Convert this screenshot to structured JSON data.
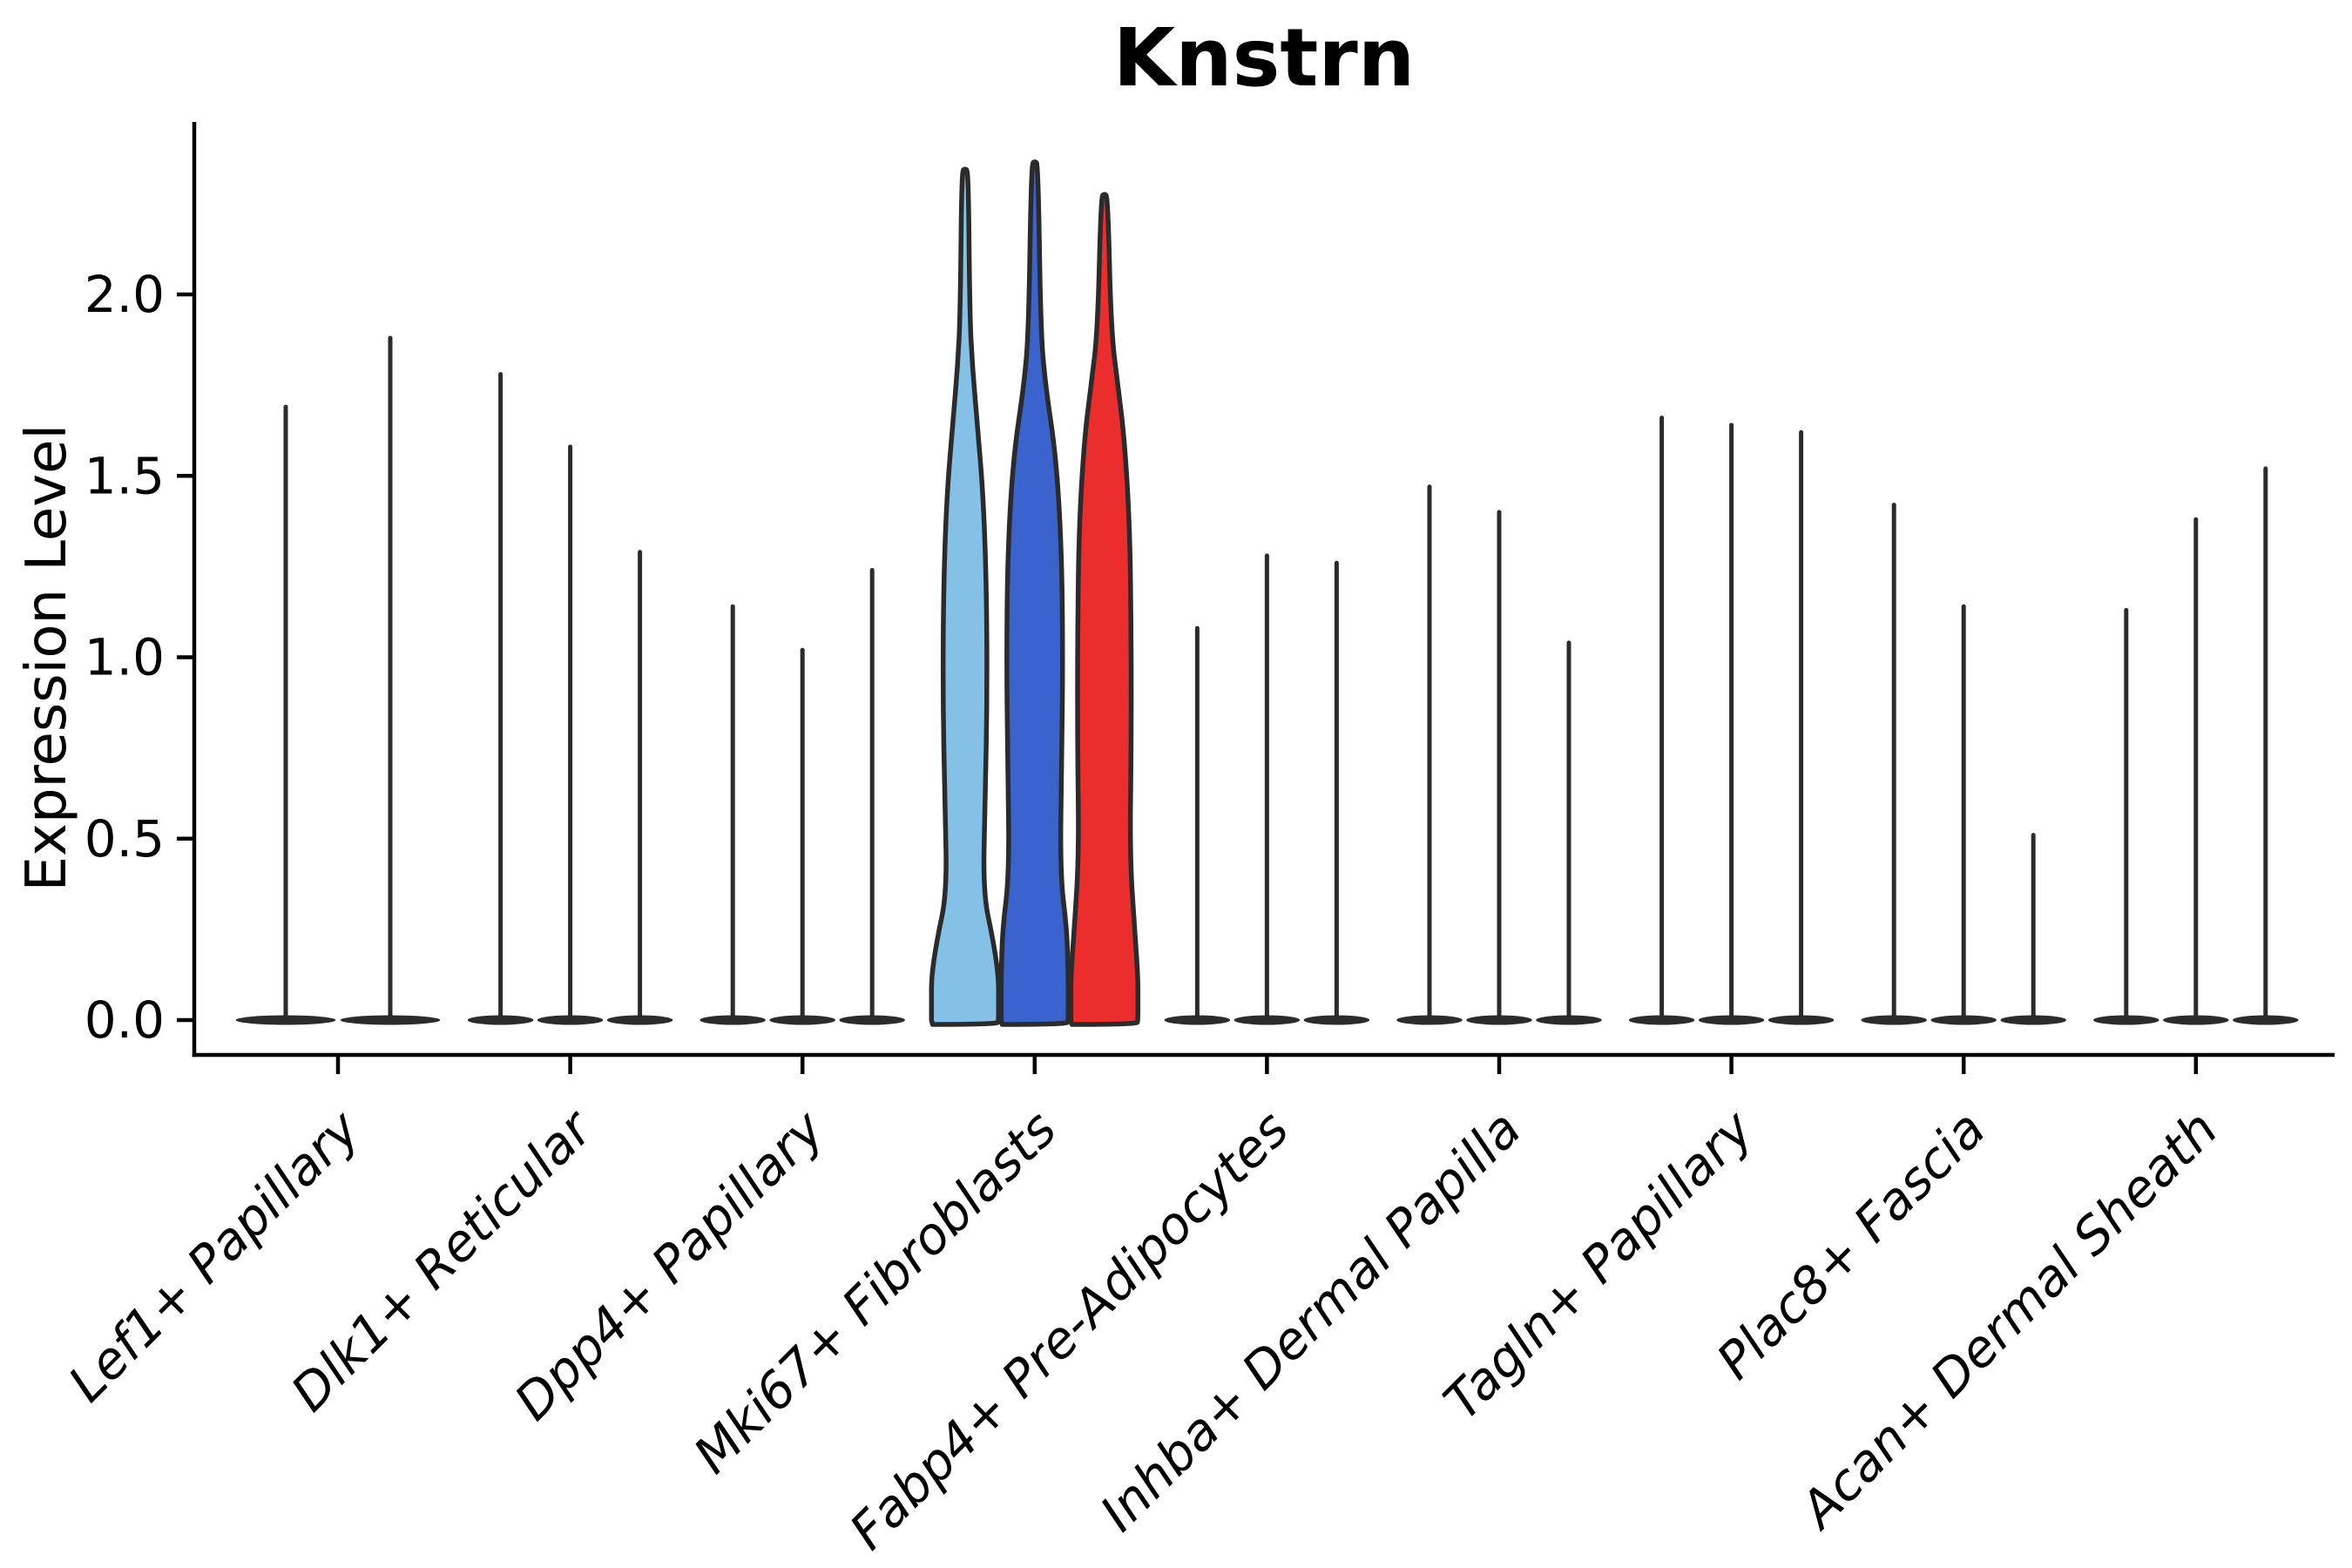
{
  "chart_data": {
    "type": "violin",
    "title": "Knstrn",
    "ylabel": "Expression Level",
    "xlabel": "",
    "yticks": [
      "0.0",
      "0.5",
      "1.0",
      "1.5",
      "2.0"
    ],
    "ytick_values": [
      0.0,
      0.5,
      1.0,
      1.5,
      2.0
    ],
    "ylim": [
      -0.11,
      2.43
    ],
    "grid": "off",
    "legend": "none",
    "categories": [
      "Lef1+ Papillary",
      "Dlk1+ Reticular",
      "Dpp4+ Papillary",
      "Mki67+ Fibroblasts",
      "Fabp4+ Pre-Adipocytes",
      "Inhba+ Dermal Papilla",
      "Tagln+ Papillary",
      "Plac8+ Fascia",
      "Acan+ Dermal Sheath"
    ],
    "groups": [
      {
        "label": "Lef1+ Papillary",
        "violins": [
          {
            "max_expression": 1.69
          },
          {
            "max_expression": 1.88
          }
        ]
      },
      {
        "label": "Dlk1+ Reticular",
        "violins": [
          {
            "max_expression": 1.78
          },
          {
            "max_expression": 1.58
          },
          {
            "max_expression": 1.29
          }
        ]
      },
      {
        "label": "Dpp4+ Papillary",
        "violins": [
          {
            "max_expression": 1.14
          },
          {
            "max_expression": 1.02
          },
          {
            "max_expression": 1.24
          }
        ]
      },
      {
        "label": "Mki67+ Fibroblasts",
        "violins": [
          {
            "max_expression": 2.34,
            "filled": true,
            "fill": "#85C1E6",
            "profile": [
              [
                0,
                1
              ],
              [
                0.05,
                0.95
              ],
              [
                0.12,
                0.7
              ],
              [
                0.22,
                0.42
              ],
              [
                0.35,
                0.27
              ],
              [
                0.6,
                0.3
              ],
              [
                0.9,
                0.33
              ],
              [
                1.2,
                0.32
              ],
              [
                1.45,
                0.27
              ],
              [
                1.65,
                0.18
              ],
              [
                1.8,
                0.11
              ],
              [
                1.95,
                0.07
              ],
              [
                2.34,
                0.05
              ]
            ]
          },
          {
            "max_expression": 2.36,
            "filled": true,
            "fill": "#3A63CE",
            "profile": [
              [
                0,
                1
              ],
              [
                0.05,
                0.95
              ],
              [
                0.12,
                0.72
              ],
              [
                0.25,
                0.48
              ],
              [
                0.4,
                0.38
              ],
              [
                0.7,
                0.4
              ],
              [
                1.0,
                0.42
              ],
              [
                1.3,
                0.4
              ],
              [
                1.55,
                0.32
              ],
              [
                1.75,
                0.16
              ],
              [
                1.9,
                0.09
              ],
              [
                2.36,
                0.05
              ]
            ]
          },
          {
            "max_expression": 2.27,
            "filled": true,
            "fill": "#EC2D2D",
            "profile": [
              [
                0,
                1
              ],
              [
                0.05,
                0.95
              ],
              [
                0.12,
                0.7
              ],
              [
                0.25,
                0.45
              ],
              [
                0.45,
                0.38
              ],
              [
                0.75,
                0.4
              ],
              [
                1.05,
                0.4
              ],
              [
                1.35,
                0.38
              ],
              [
                1.6,
                0.3
              ],
              [
                1.75,
                0.2
              ],
              [
                1.9,
                0.1
              ],
              [
                2.27,
                0.05
              ]
            ]
          }
        ]
      },
      {
        "label": "Fabp4+ Pre-Adipocytes",
        "violins": [
          {
            "max_expression": 1.08
          },
          {
            "max_expression": 1.28
          },
          {
            "max_expression": 1.26
          }
        ]
      },
      {
        "label": "Inhba+ Dermal Papilla",
        "violins": [
          {
            "max_expression": 1.47
          },
          {
            "max_expression": 1.4
          },
          {
            "max_expression": 1.04
          }
        ]
      },
      {
        "label": "Tagln+ Papillary",
        "violins": [
          {
            "max_expression": 1.66
          },
          {
            "max_expression": 1.64
          },
          {
            "max_expression": 1.62
          }
        ]
      },
      {
        "label": "Plac8+ Fascia",
        "violins": [
          {
            "max_expression": 1.42
          },
          {
            "max_expression": 1.14
          },
          {
            "max_expression": 0.51
          }
        ]
      },
      {
        "label": "Acan+ Dermal Sheath",
        "violins": [
          {
            "max_expression": 1.13
          },
          {
            "max_expression": 1.38
          },
          {
            "max_expression": 1.52
          }
        ]
      }
    ],
    "colors": {
      "violin_outline": "#2B2B2B",
      "axis": "#000000",
      "background": "#FFFFFF",
      "split_palette": [
        "#85C1E6",
        "#3A63CE",
        "#EC2D2D"
      ]
    }
  }
}
